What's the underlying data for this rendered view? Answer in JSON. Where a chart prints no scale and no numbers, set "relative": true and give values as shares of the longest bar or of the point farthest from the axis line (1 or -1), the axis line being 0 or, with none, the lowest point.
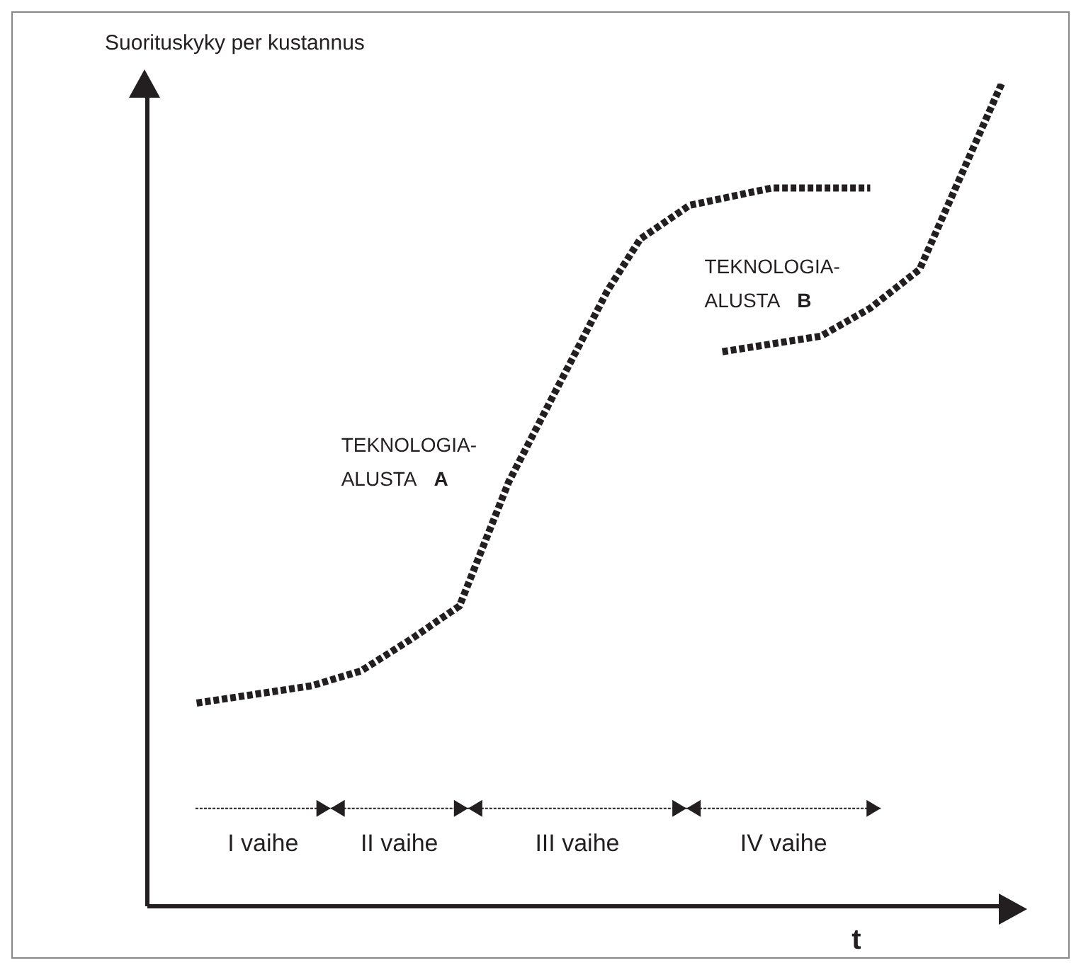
{
  "chart_data": {
    "type": "line",
    "relative": true,
    "ylabel": "Suorituskyky per kustannus",
    "xlabel": "t",
    "line_style": "dotted",
    "marker": "none",
    "legend": false,
    "grid": false,
    "categories": [
      null,
      null,
      null,
      null,
      null,
      null,
      null,
      null,
      null,
      null,
      null,
      null,
      null,
      null,
      null,
      null,
      null,
      null,
      null,
      null,
      null,
      null,
      null,
      null,
      null,
      null,
      null,
      null,
      null,
      null,
      null,
      null,
      null,
      null,
      null,
      null,
      null,
      null,
      null,
      null,
      null,
      null,
      null,
      null,
      null,
      null,
      null,
      null,
      null,
      null,
      null,
      null,
      null
    ],
    "series": [
      {
        "name": "TEKNOLOGIA-ALUSTA A",
        "color": "#231f20",
        "values": [
          null,
          null,
          null,
          0.247,
          null,
          null,
          null,
          null,
          null,
          null,
          0.268,
          null,
          null,
          0.286,
          null,
          null,
          0.324,
          null,
          null,
          0.365,
          null,
          null,
          0.516,
          null,
          null,
          null,
          null,
          null,
          0.748,
          null,
          0.811,
          null,
          null,
          0.852,
          null,
          null,
          null,
          null,
          0.873,
          null,
          null,
          null,
          null,
          null,
          0.873,
          null,
          null,
          null,
          null,
          null,
          null,
          null,
          null
        ]
      },
      {
        "name": "TEKNOLOGIA-ALUSTA B",
        "color": "#231f20",
        "values": [
          null,
          null,
          null,
          null,
          null,
          null,
          null,
          null,
          null,
          null,
          null,
          null,
          null,
          null,
          null,
          null,
          null,
          null,
          null,
          null,
          null,
          null,
          null,
          null,
          null,
          null,
          null,
          null,
          null,
          null,
          null,
          null,
          null,
          null,
          null,
          0.674,
          null,
          null,
          null,
          null,
          null,
          0.693,
          null,
          null,
          0.727,
          null,
          null,
          0.774,
          null,
          null,
          null,
          null,
          1
        ]
      }
    ],
    "annotations": [
      "I vaihe",
      "II vaihe",
      "III vaihe",
      "IV vaihe"
    ]
  }
}
